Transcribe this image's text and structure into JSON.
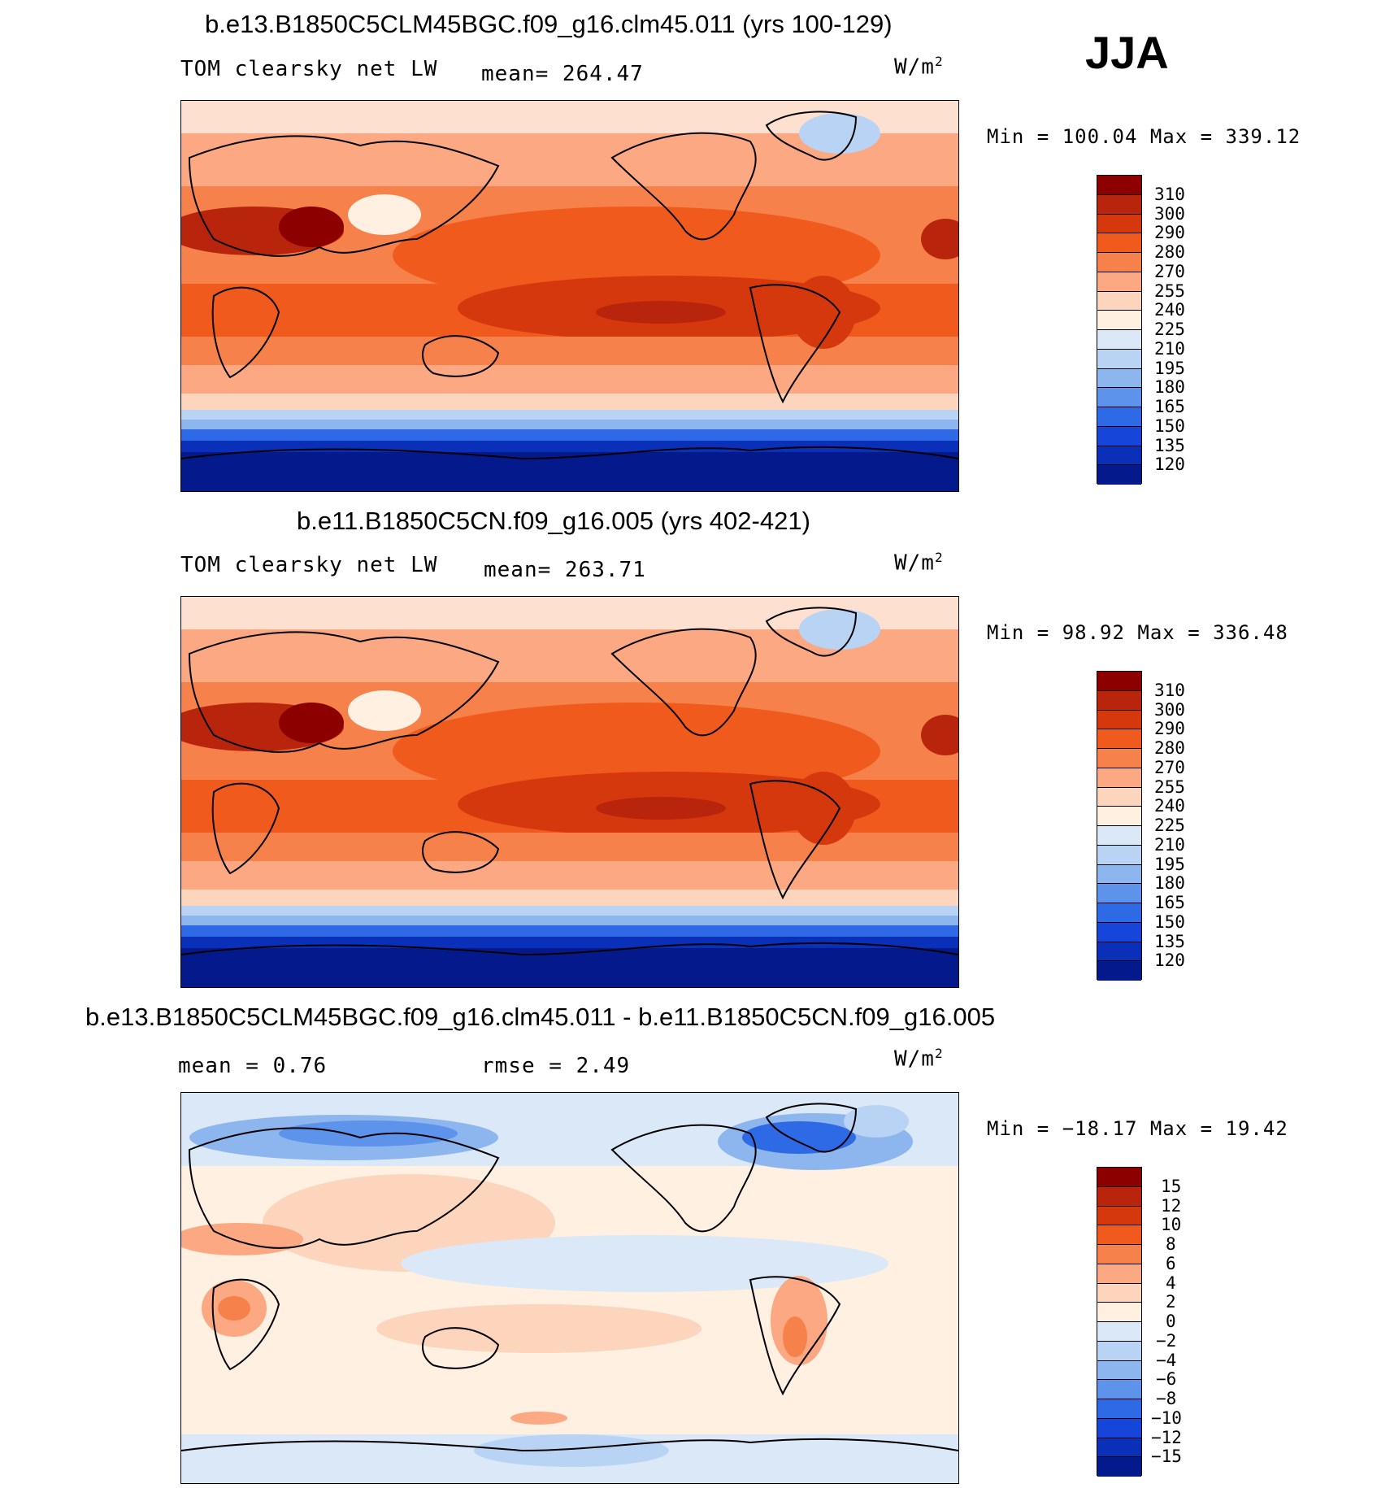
{
  "season": "JJA",
  "panels": [
    {
      "title": "b.e13.B1850C5CLM45BGC.f09_g16.clm45.011 (yrs 100-129)",
      "left_label": "TOM clearsky net LW",
      "center_label": "mean= 264.47",
      "units_base": "W/m",
      "units_sup": "2",
      "minmax": "Min  =  100.04  Max  =  339.12",
      "colorbar": {
        "colors": [
          "#8c0000",
          "#b8250c",
          "#d6380e",
          "#f05a1c",
          "#f7814a",
          "#fba883",
          "#fdd4bc",
          "#fff0e2",
          "#dbe8f7",
          "#b9d3f4",
          "#8db6ef",
          "#5d93eb",
          "#2f6ae6",
          "#1646d9",
          "#0a2fb9",
          "#041a8c"
        ],
        "labels": [
          "310",
          "300",
          "290",
          "280",
          "270",
          "255",
          "240",
          "225",
          "210",
          "195",
          "180",
          "165",
          "150",
          "135",
          "120"
        ]
      }
    },
    {
      "title": "b.e11.B1850C5CN.f09_g16.005 (yrs 402-421)",
      "left_label": "TOM clearsky net LW",
      "center_label": "mean= 263.71",
      "units_base": "W/m",
      "units_sup": "2",
      "minmax": "Min  =   98.92  Max  =  336.48",
      "colorbar": {
        "colors": [
          "#8c0000",
          "#b8250c",
          "#d6380e",
          "#f05a1c",
          "#f7814a",
          "#fba883",
          "#fdd4bc",
          "#fff0e2",
          "#dbe8f7",
          "#b9d3f4",
          "#8db6ef",
          "#5d93eb",
          "#2f6ae6",
          "#1646d9",
          "#0a2fb9",
          "#041a8c"
        ],
        "labels": [
          "310",
          "300",
          "290",
          "280",
          "270",
          "255",
          "240",
          "225",
          "210",
          "195",
          "180",
          "165",
          "150",
          "135",
          "120"
        ]
      }
    },
    {
      "title": "b.e13.B1850C5CLM45BGC.f09_g16.clm45.011 - b.e11.B1850C5CN.f09_g16.005",
      "left_label": "mean =    0.76",
      "center_label": "rmse =    2.49",
      "units_base": "W/m",
      "units_sup": "2",
      "minmax": "Min  = −18.17  Max  =    19.42",
      "colorbar": {
        "colors": [
          "#8c0000",
          "#b8250c",
          "#d6380e",
          "#f05a1c",
          "#f7814a",
          "#fba883",
          "#fdd4bc",
          "#fff0e2",
          "#dbe8f7",
          "#b9d3f4",
          "#8db6ef",
          "#5d93eb",
          "#2f6ae6",
          "#1646d9",
          "#0a2fb9",
          "#041a8c"
        ],
        "labels": [
          "15",
          "12",
          "10",
          "8",
          "6",
          "4",
          "2",
          "0",
          "−2",
          "−4",
          "−6",
          "−8",
          "−10",
          "−12",
          "−15"
        ]
      }
    }
  ]
}
